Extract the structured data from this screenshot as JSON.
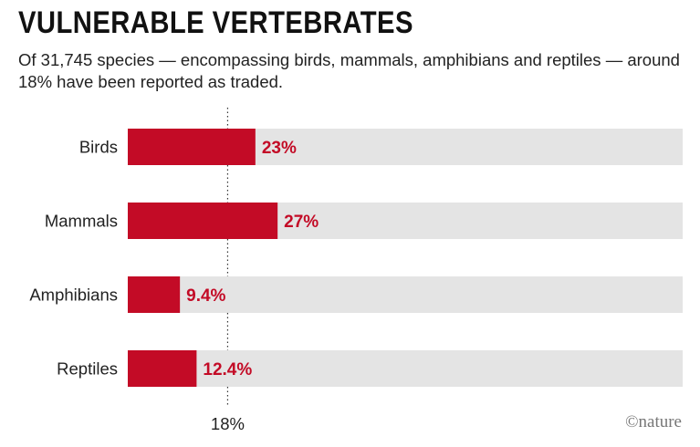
{
  "title": "VULNERABLE VERTEBRATES",
  "subtitle": "Of 31,745 species — encompassing birds, mammals, amphibians and reptiles — around 18% have been reported as traded.",
  "credit": "©nature",
  "colors": {
    "bar": "#c30b26",
    "track": "#e4e4e4",
    "label": "#c30b26",
    "reference": "#333333"
  },
  "chart_data": {
    "type": "bar",
    "orientation": "horizontal",
    "categories": [
      "Birds",
      "Mammals",
      "Amphibians",
      "Reptiles"
    ],
    "values": [
      23,
      27,
      9.4,
      12.4
    ],
    "value_labels": [
      "23%",
      "27%",
      "9.4%",
      "12.4%"
    ],
    "xlim": [
      0,
      100
    ],
    "reference_line": {
      "value": 18,
      "label": "18%"
    },
    "grid": false
  }
}
